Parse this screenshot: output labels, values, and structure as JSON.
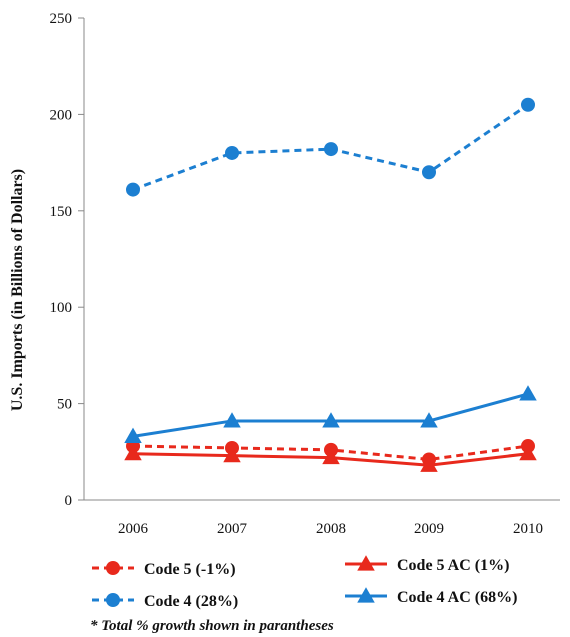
{
  "chart_data": {
    "type": "line",
    "categories": [
      "2006",
      "2007",
      "2008",
      "2009",
      "2010"
    ],
    "ylabel": "U.S. Imports (in Billions of Dollars)",
    "xlabel": "",
    "ylim": [
      0,
      250
    ],
    "yticks": [
      "0",
      "50",
      "100",
      "150",
      "200",
      "250"
    ],
    "grid": false,
    "legend_position": "bottom",
    "series": [
      {
        "name": "Code 5 (-1%)",
        "values": [
          28,
          27,
          26,
          21,
          28
        ],
        "color": "#e8291c",
        "marker": "circle",
        "dash": true
      },
      {
        "name": "Code 5 AC (1%)",
        "values": [
          24,
          23,
          22,
          18,
          24
        ],
        "color": "#e8291c",
        "marker": "triangle",
        "dash": false
      },
      {
        "name": "Code 4 (28%)",
        "values": [
          161,
          180,
          182,
          170,
          205
        ],
        "color": "#1c7fd1",
        "marker": "circle",
        "dash": true
      },
      {
        "name": "Code 4 AC (68%)",
        "values": [
          33,
          41,
          41,
          41,
          55
        ],
        "color": "#1c7fd1",
        "marker": "triangle",
        "dash": false
      }
    ],
    "footnote": "* Total % growth shown in parantheses"
  }
}
